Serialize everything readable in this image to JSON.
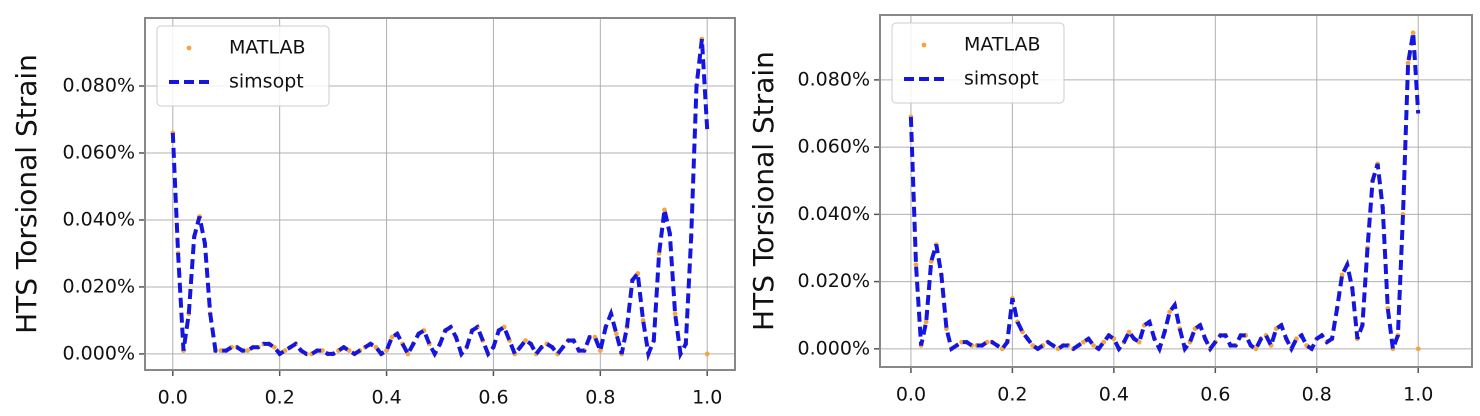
{
  "chart_data": [
    {
      "type": "line",
      "y_label": "HTS Torsional Strain",
      "grid": true,
      "legend": "upper left",
      "x": [
        0,
        0.01,
        0.02,
        0.03,
        0.04,
        0.05,
        0.06,
        0.07,
        0.08,
        0.09,
        0.1,
        0.11,
        0.12,
        0.13,
        0.14,
        0.15,
        0.16,
        0.17,
        0.18,
        0.19,
        0.2,
        0.21,
        0.22,
        0.23,
        0.24,
        0.25,
        0.26,
        0.27,
        0.28,
        0.29,
        0.3,
        0.31,
        0.32,
        0.33,
        0.34,
        0.35,
        0.36,
        0.37,
        0.38,
        0.39,
        0.4,
        0.41,
        0.42,
        0.43,
        0.44,
        0.45,
        0.46,
        0.47,
        0.48,
        0.49,
        0.5,
        0.51,
        0.52,
        0.53,
        0.54,
        0.55,
        0.56,
        0.57,
        0.58,
        0.59,
        0.6,
        0.61,
        0.62,
        0.63,
        0.64,
        0.65,
        0.66,
        0.67,
        0.68,
        0.69,
        0.7,
        0.71,
        0.72,
        0.73,
        0.74,
        0.75,
        0.76,
        0.77,
        0.78,
        0.79,
        0.8,
        0.81,
        0.82,
        0.83,
        0.84,
        0.85,
        0.86,
        0.87,
        0.88,
        0.89,
        0.9,
        0.91,
        0.92,
        0.93,
        0.94,
        0.95,
        0.96,
        0.97,
        0.98,
        0.99,
        1
      ],
      "xlim": [
        -0.052,
        1.052
      ],
      "xticks": [
        {
          "value": 0,
          "label": "0.0"
        },
        0.2,
        0.4,
        0.6,
        0.8,
        {
          "value": 1,
          "label": "1.0"
        }
      ],
      "ylim": [
        -0.0048,
        0.1003
      ],
      "yticks": [
        {
          "value": 0,
          "label": "0.000%"
        },
        {
          "value": 0.02,
          "label": "0.020%"
        },
        {
          "value": 0.04,
          "label": "0.040%"
        },
        {
          "value": 0.06,
          "label": "0.060%"
        },
        {
          "value": 0.08,
          "label": "0.080%"
        }
      ],
      "series": [
        {
          "name": "MATLAB",
          "color": "#f5a53c",
          "linestyle": "none",
          "marker": ".",
          "values": [
            0.066,
            0.03,
            0.001,
            0.012,
            0.035,
            0.041,
            0.033,
            0.012,
            0.001,
            0.001,
            0.001,
            0.002,
            0.002,
            0.001,
            0.001,
            0.002,
            0.002,
            0.003,
            0.003,
            0.002,
            0,
            0.001,
            0.002,
            0.003,
            0.001,
            0,
            0,
            0.001,
            0.001,
            0,
            0,
            0.001,
            0.002,
            0.001,
            0,
            0.001,
            0.002,
            0.003,
            0.002,
            0,
            0.001,
            0.005,
            0.006,
            0.003,
            0,
            0.003,
            0.006,
            0.007,
            0.003,
            0,
            0.003,
            0.007,
            0.008,
            0.005,
            0,
            0.002,
            0.007,
            0.008,
            0.004,
            0,
            0.002,
            0.007,
            0.008,
            0.004,
            0,
            0.002,
            0.004,
            0.003,
            0,
            0.002,
            0.003,
            0.002,
            0,
            0.002,
            0.004,
            0.004,
            0.001,
            0.001,
            0.005,
            0.005,
            0.001,
            0.008,
            0.012,
            0.006,
            0,
            0.008,
            0.022,
            0.024,
            0.01,
            0,
            0.004,
            0.03,
            0.043,
            0.036,
            0.012,
            0,
            0.003,
            0.035,
            0.08,
            0.094,
            0
          ]
        },
        {
          "name": "simsopt",
          "color": "#1515e0",
          "linestyle": "--",
          "marker": "none",
          "values": [
            0.066,
            0.03,
            0.001,
            0.012,
            0.035,
            0.041,
            0.033,
            0.012,
            0.001,
            0.001,
            0.001,
            0.002,
            0.002,
            0.001,
            0.001,
            0.002,
            0.002,
            0.003,
            0.003,
            0.002,
            0,
            0.001,
            0.002,
            0.003,
            0.001,
            0,
            0,
            0.001,
            0.001,
            0,
            0,
            0.001,
            0.002,
            0.001,
            0,
            0.001,
            0.002,
            0.003,
            0.002,
            0,
            0.001,
            0.005,
            0.006,
            0.003,
            0,
            0.003,
            0.006,
            0.007,
            0.003,
            0,
            0.003,
            0.007,
            0.008,
            0.005,
            0,
            0.002,
            0.007,
            0.008,
            0.004,
            0,
            0.002,
            0.007,
            0.008,
            0.004,
            0,
            0.002,
            0.004,
            0.003,
            0,
            0.002,
            0.003,
            0.002,
            0,
            0.002,
            0.004,
            0.004,
            0.001,
            0.001,
            0.005,
            0.005,
            0.001,
            0.008,
            0.012,
            0.006,
            0,
            0.008,
            0.022,
            0.024,
            0.01,
            0,
            0.004,
            0.03,
            0.043,
            0.036,
            0.012,
            0,
            0.003,
            0.035,
            0.08,
            0.094,
            0.067
          ]
        }
      ]
    },
    {
      "type": "line",
      "y_label": "HTS Torsional Strain",
      "grid": true,
      "legend": "upper left",
      "x": [
        0,
        0.01,
        0.02,
        0.03,
        0.04,
        0.05,
        0.06,
        0.07,
        0.08,
        0.09,
        0.1,
        0.11,
        0.12,
        0.13,
        0.14,
        0.15,
        0.16,
        0.17,
        0.18,
        0.19,
        0.2,
        0.21,
        0.22,
        0.23,
        0.24,
        0.25,
        0.26,
        0.27,
        0.28,
        0.29,
        0.3,
        0.31,
        0.32,
        0.33,
        0.34,
        0.35,
        0.36,
        0.37,
        0.38,
        0.39,
        0.4,
        0.41,
        0.42,
        0.43,
        0.44,
        0.45,
        0.46,
        0.47,
        0.48,
        0.49,
        0.5,
        0.51,
        0.52,
        0.53,
        0.54,
        0.55,
        0.56,
        0.57,
        0.58,
        0.59,
        0.6,
        0.61,
        0.62,
        0.63,
        0.64,
        0.65,
        0.66,
        0.67,
        0.68,
        0.69,
        0.7,
        0.71,
        0.72,
        0.73,
        0.74,
        0.75,
        0.76,
        0.77,
        0.78,
        0.79,
        0.8,
        0.81,
        0.82,
        0.83,
        0.84,
        0.85,
        0.86,
        0.87,
        0.88,
        0.89,
        0.9,
        0.91,
        0.92,
        0.93,
        0.94,
        0.95,
        0.96,
        0.97,
        0.98,
        0.99,
        1
      ],
      "xlim": [
        -0.061,
        1.106
      ],
      "xticks": [
        {
          "value": 0,
          "label": "0.0"
        },
        0.2,
        0.4,
        0.6,
        0.8,
        {
          "value": 1,
          "label": "1.0"
        }
      ],
      "ylim": [
        -0.0054,
        0.0993
      ],
      "yticks": [
        {
          "value": 0,
          "label": "0.000%"
        },
        {
          "value": 0.02,
          "label": "0.020%"
        },
        {
          "value": 0.04,
          "label": "0.040%"
        },
        {
          "value": 0.06,
          "label": "0.060%"
        },
        {
          "value": 0.08,
          "label": "0.080%"
        }
      ],
      "series": [
        {
          "name": "MATLAB",
          "color": "#f5a53c",
          "linestyle": "none",
          "marker": ".",
          "values": [
            0.069,
            0.025,
            0.001,
            0.008,
            0.026,
            0.031,
            0.022,
            0.006,
            0,
            0.001,
            0.002,
            0.002,
            0.001,
            0.001,
            0.001,
            0.002,
            0.002,
            0.001,
            0,
            0.002,
            0.015,
            0.008,
            0.005,
            0.003,
            0.001,
            0,
            0.001,
            0.002,
            0.001,
            0,
            0.001,
            0.001,
            0,
            0.001,
            0.002,
            0.003,
            0.001,
            0,
            0.002,
            0.004,
            0.003,
            0,
            0.002,
            0.005,
            0.003,
            0.002,
            0.007,
            0.008,
            0.003,
            0,
            0.005,
            0.011,
            0.013,
            0.006,
            0,
            0.002,
            0.006,
            0.007,
            0.003,
            0,
            0.002,
            0.004,
            0.004,
            0.001,
            0.001,
            0.004,
            0.004,
            0.001,
            0,
            0.003,
            0.004,
            0.001,
            0.006,
            0.007,
            0.003,
            0,
            0.003,
            0.004,
            0.001,
            0,
            0.003,
            0.004,
            0.002,
            0.003,
            0.012,
            0.022,
            0.025,
            0.018,
            0.003,
            0.007,
            0.03,
            0.05,
            0.055,
            0.042,
            0.012,
            0,
            0.004,
            0.04,
            0.085,
            0.094,
            0
          ]
        },
        {
          "name": "simsopt",
          "color": "#1515e0",
          "linestyle": "--",
          "marker": "none",
          "values": [
            0.069,
            0.025,
            0.001,
            0.008,
            0.026,
            0.031,
            0.022,
            0.006,
            0,
            0.001,
            0.002,
            0.002,
            0.001,
            0.001,
            0.001,
            0.002,
            0.002,
            0.001,
            0,
            0.002,
            0.015,
            0.008,
            0.005,
            0.003,
            0.001,
            0,
            0.001,
            0.002,
            0.001,
            0,
            0.001,
            0.001,
            0,
            0.001,
            0.002,
            0.003,
            0.001,
            0,
            0.002,
            0.004,
            0.003,
            0,
            0.002,
            0.005,
            0.003,
            0.002,
            0.007,
            0.008,
            0.003,
            0,
            0.005,
            0.011,
            0.013,
            0.006,
            0,
            0.002,
            0.006,
            0.007,
            0.003,
            0,
            0.002,
            0.004,
            0.004,
            0.001,
            0.001,
            0.004,
            0.004,
            0.001,
            0,
            0.003,
            0.004,
            0.001,
            0.006,
            0.007,
            0.003,
            0,
            0.003,
            0.004,
            0.001,
            0,
            0.003,
            0.004,
            0.002,
            0.003,
            0.012,
            0.022,
            0.025,
            0.018,
            0.003,
            0.007,
            0.03,
            0.05,
            0.055,
            0.042,
            0.012,
            0,
            0.004,
            0.04,
            0.085,
            0.094,
            0.07
          ]
        }
      ]
    }
  ]
}
